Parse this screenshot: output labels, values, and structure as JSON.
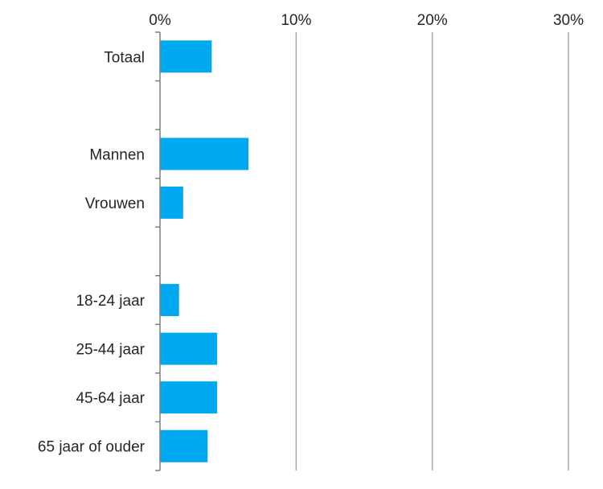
{
  "chart_data": {
    "type": "bar",
    "orientation": "horizontal",
    "categories": [
      "Totaal",
      "",
      "Mannen",
      "Vrouwen",
      "",
      "18-24 jaar",
      "25-44 jaar",
      "45-64 jaar",
      "65 jaar of ouder"
    ],
    "values": [
      3.8,
      null,
      6.5,
      1.7,
      null,
      1.4,
      4.2,
      4.2,
      3.5
    ],
    "xlim": [
      0,
      30
    ],
    "x_ticks": [
      0,
      10,
      20,
      30
    ],
    "x_tick_labels": [
      "0%",
      "10%",
      "20%",
      "30%"
    ],
    "x_axis_position": "top",
    "grid": "vertical",
    "legend": "none",
    "colors": {
      "bar": "#00a8f0",
      "grid": "#a6a6a6",
      "axis": "#7f7f7f",
      "text": "#262626"
    }
  }
}
